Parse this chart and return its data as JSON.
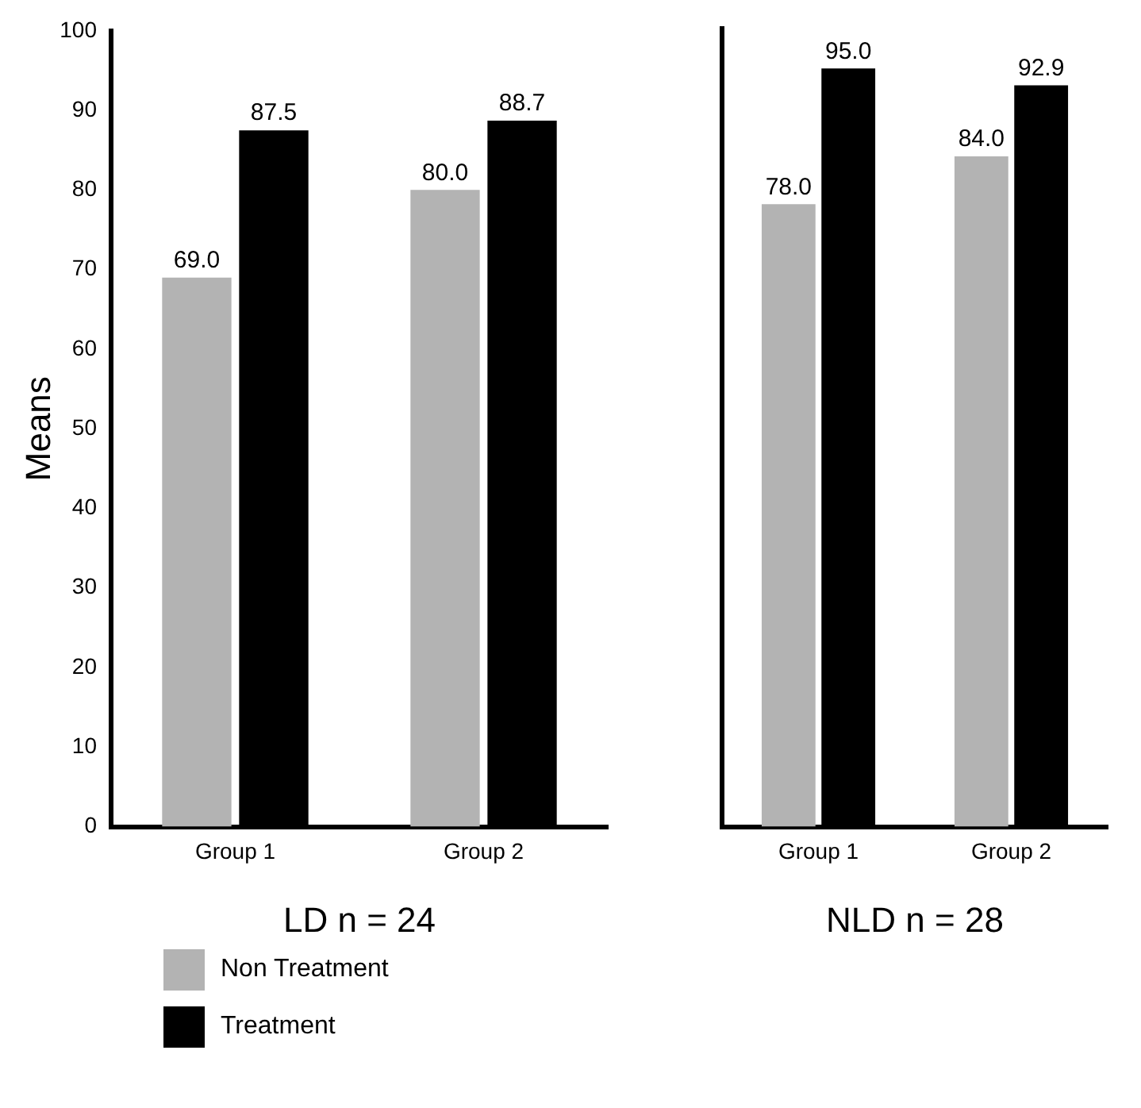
{
  "chart_data": [
    {
      "type": "bar",
      "ylabel": "Means",
      "xlabel": "LD n = 24",
      "categories": [
        "Group 1",
        "Group 2"
      ],
      "ylim": [
        0,
        100
      ],
      "yticks": [
        0,
        10,
        20,
        30,
        40,
        50,
        60,
        70,
        80,
        90,
        100
      ],
      "grid": false,
      "legend": "bottom left",
      "series": [
        {
          "name": "Non Treatment",
          "color": "#b3b3b3",
          "values": [
            69.0,
            80.0
          ],
          "value_labels": [
            "69.0",
            "80.0"
          ]
        },
        {
          "name": "Treatment",
          "color": "#000000",
          "values": [
            87.5,
            88.7
          ],
          "value_labels": [
            "87.5",
            "88.7"
          ]
        }
      ]
    },
    {
      "type": "bar",
      "xlabel": "NLD n = 28",
      "categories": [
        "Group 1",
        "Group 2"
      ],
      "ylim": [
        0,
        100
      ],
      "yticks": [
        0,
        10,
        20,
        30,
        40,
        50,
        60,
        70,
        80,
        90,
        100
      ],
      "grid": false,
      "tick_labels": "x",
      "series": [
        {
          "color": "#b3b3b3",
          "values": [
            78.0,
            84.0
          ],
          "value_labels": [
            "78.0",
            "84.0"
          ]
        },
        {
          "color": "#000000",
          "values": [
            95.0,
            92.9
          ],
          "value_labels": [
            "95.0",
            "92.9"
          ]
        }
      ]
    }
  ]
}
